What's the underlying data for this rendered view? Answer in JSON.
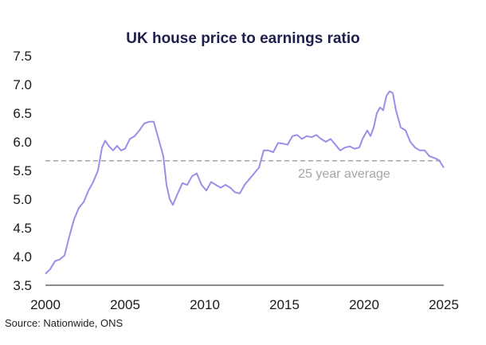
{
  "chart_data": {
    "type": "line",
    "title": "UK house price to earnings ratio",
    "source": "Source: Nationwide, ONS",
    "xlabel": "",
    "ylabel": "",
    "xlim": [
      2000,
      2025
    ],
    "ylim": [
      3.5,
      7.5
    ],
    "x_ticks": [
      "2000",
      "2005",
      "2010",
      "2015",
      "2020",
      "2025"
    ],
    "y_ticks": [
      "3.5",
      "4.0",
      "4.5",
      "5.0",
      "5.5",
      "6.0",
      "6.5",
      "7.0",
      "7.5"
    ],
    "grid": false,
    "series": [
      {
        "name": "",
        "color": "#a08ce8",
        "points": [
          [
            2000.0,
            3.7
          ],
          [
            2000.3,
            3.78
          ],
          [
            2000.6,
            3.92
          ],
          [
            2000.9,
            3.95
          ],
          [
            2001.2,
            4.02
          ],
          [
            2001.5,
            4.35
          ],
          [
            2001.8,
            4.65
          ],
          [
            2002.1,
            4.85
          ],
          [
            2002.4,
            4.95
          ],
          [
            2002.7,
            5.15
          ],
          [
            2003.0,
            5.3
          ],
          [
            2003.3,
            5.5
          ],
          [
            2003.55,
            5.9
          ],
          [
            2003.75,
            6.02
          ],
          [
            2004.0,
            5.92
          ],
          [
            2004.25,
            5.85
          ],
          [
            2004.5,
            5.93
          ],
          [
            2004.75,
            5.85
          ],
          [
            2005.0,
            5.88
          ],
          [
            2005.3,
            6.05
          ],
          [
            2005.6,
            6.1
          ],
          [
            2005.9,
            6.2
          ],
          [
            2006.2,
            6.32
          ],
          [
            2006.5,
            6.35
          ],
          [
            2006.8,
            6.35
          ],
          [
            2007.1,
            6.05
          ],
          [
            2007.4,
            5.75
          ],
          [
            2007.6,
            5.25
          ],
          [
            2007.8,
            5.0
          ],
          [
            2008.0,
            4.9
          ],
          [
            2008.3,
            5.1
          ],
          [
            2008.6,
            5.28
          ],
          [
            2008.9,
            5.25
          ],
          [
            2009.2,
            5.4
          ],
          [
            2009.5,
            5.45
          ],
          [
            2009.8,
            5.25
          ],
          [
            2010.1,
            5.15
          ],
          [
            2010.4,
            5.3
          ],
          [
            2010.7,
            5.25
          ],
          [
            2011.0,
            5.2
          ],
          [
            2011.3,
            5.25
          ],
          [
            2011.6,
            5.2
          ],
          [
            2011.9,
            5.12
          ],
          [
            2012.2,
            5.1
          ],
          [
            2012.5,
            5.25
          ],
          [
            2012.8,
            5.35
          ],
          [
            2013.1,
            5.45
          ],
          [
            2013.4,
            5.55
          ],
          [
            2013.7,
            5.85
          ],
          [
            2014.0,
            5.85
          ],
          [
            2014.3,
            5.82
          ],
          [
            2014.6,
            5.98
          ],
          [
            2014.9,
            5.97
          ],
          [
            2015.2,
            5.95
          ],
          [
            2015.5,
            6.1
          ],
          [
            2015.8,
            6.12
          ],
          [
            2016.1,
            6.05
          ],
          [
            2016.4,
            6.1
          ],
          [
            2016.7,
            6.08
          ],
          [
            2017.0,
            6.12
          ],
          [
            2017.3,
            6.05
          ],
          [
            2017.6,
            6.0
          ],
          [
            2017.9,
            6.05
          ],
          [
            2018.2,
            5.95
          ],
          [
            2018.5,
            5.85
          ],
          [
            2018.8,
            5.9
          ],
          [
            2019.1,
            5.92
          ],
          [
            2019.4,
            5.88
          ],
          [
            2019.7,
            5.9
          ],
          [
            2019.9,
            6.05
          ],
          [
            2020.2,
            6.2
          ],
          [
            2020.4,
            6.1
          ],
          [
            2020.6,
            6.25
          ],
          [
            2020.8,
            6.5
          ],
          [
            2021.0,
            6.6
          ],
          [
            2021.2,
            6.55
          ],
          [
            2021.4,
            6.8
          ],
          [
            2021.6,
            6.88
          ],
          [
            2021.8,
            6.85
          ],
          [
            2022.0,
            6.55
          ],
          [
            2022.3,
            6.25
          ],
          [
            2022.6,
            6.2
          ],
          [
            2022.9,
            6.0
          ],
          [
            2023.2,
            5.9
          ],
          [
            2023.5,
            5.85
          ],
          [
            2023.8,
            5.85
          ],
          [
            2024.1,
            5.75
          ],
          [
            2024.4,
            5.72
          ],
          [
            2024.7,
            5.68
          ],
          [
            2025.0,
            5.55
          ]
        ]
      }
    ],
    "reference_line": {
      "label": "25 year average",
      "value": 5.67,
      "color": "#a6a6a6",
      "style": "dashed"
    }
  }
}
